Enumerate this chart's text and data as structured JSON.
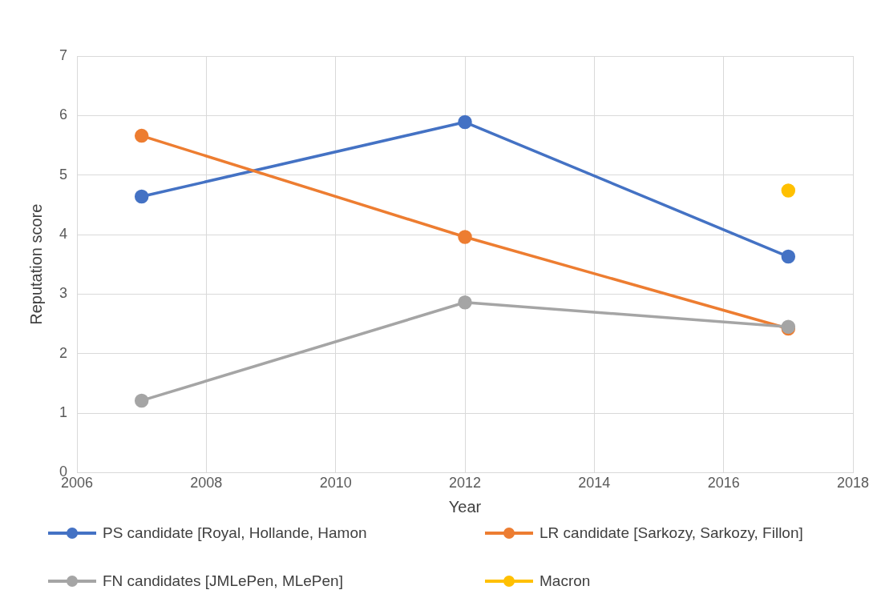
{
  "chart_data": {
    "type": "line",
    "xlabel": "Year",
    "ylabel": "Reputation score",
    "x": [
      2007,
      2012,
      2017
    ],
    "series": [
      {
        "name": "PS candidate [Royal, Hollande, Hamon",
        "color": "#4472c4",
        "values": [
          4.64,
          5.89,
          3.63
        ]
      },
      {
        "name": "LR candidate [Sarkozy, Sarkozy, Fillon]",
        "color": "#ed7d31",
        "values": [
          5.66,
          3.96,
          2.42
        ]
      },
      {
        "name": "FN candidates [JMLePen, MLePen]",
        "color": "#a5a5a5",
        "values": [
          1.21,
          2.86,
          2.45
        ]
      },
      {
        "name": "Macron",
        "color": "#ffc000",
        "values": [
          null,
          null,
          4.74
        ]
      }
    ],
    "xlim": [
      2006,
      2018
    ],
    "xticks": [
      2006,
      2008,
      2010,
      2012,
      2014,
      2016,
      2018
    ],
    "ylim": [
      0,
      7
    ],
    "yticks": [
      0,
      1,
      2,
      3,
      4,
      5,
      6,
      7
    ],
    "grid": true,
    "legend": "bottom",
    "marker": "circle",
    "line_style": "solid"
  }
}
